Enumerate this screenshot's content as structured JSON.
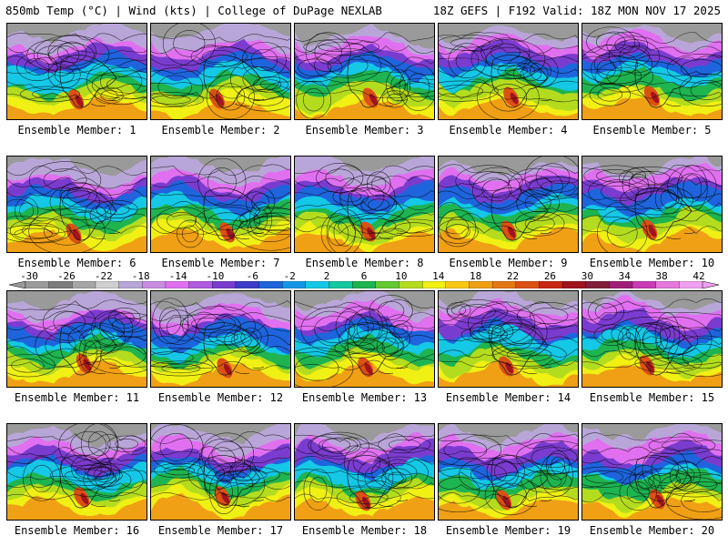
{
  "header": {
    "title": "850mb Temp (°C) | Wind (kts) | College of DuPage NEXLAB",
    "run": "18Z GEFS | F192 Valid: 18Z MON NOV 17 2025"
  },
  "colorbar": {
    "ticks": [
      "-30",
      "-26",
      "-22",
      "-18",
      "-14",
      "-10",
      "-6",
      "-2",
      "2",
      "6",
      "10",
      "14",
      "18",
      "22",
      "26",
      "30",
      "34",
      "38",
      "42"
    ],
    "colors": [
      "#9a9a9a",
      "#7d7d7d",
      "#a6a6a6",
      "#cfcfcf",
      "#b9a6d8",
      "#c88ce0",
      "#e070f0",
      "#b05ae0",
      "#7a3ccf",
      "#3c3cc8",
      "#1e64dc",
      "#1496e6",
      "#14c8e6",
      "#14c8a0",
      "#1eb450",
      "#64c832",
      "#b4dc1e",
      "#f0f014",
      "#fac814",
      "#f0a014",
      "#e67814",
      "#dc5014",
      "#c82814",
      "#a0141e",
      "#821e3c",
      "#a01e78",
      "#c83cb4",
      "#e678dc",
      "#f0a0f0"
    ]
  },
  "panels": [
    {
      "label": "Ensemble Member: 1"
    },
    {
      "label": "Ensemble Member: 2"
    },
    {
      "label": "Ensemble Member: 3"
    },
    {
      "label": "Ensemble Member: 4"
    },
    {
      "label": "Ensemble Member: 5"
    },
    {
      "label": "Ensemble Member: 6"
    },
    {
      "label": "Ensemble Member: 7"
    },
    {
      "label": "Ensemble Member: 8"
    },
    {
      "label": "Ensemble Member: 9"
    },
    {
      "label": "Ensemble Member: 10"
    },
    {
      "label": "Ensemble Member: 11"
    },
    {
      "label": "Ensemble Member: 12"
    },
    {
      "label": "Ensemble Member: 13"
    },
    {
      "label": "Ensemble Member: 14"
    },
    {
      "label": "Ensemble Member: 15"
    },
    {
      "label": "Ensemble Member: 16"
    },
    {
      "label": "Ensemble Member: 17"
    },
    {
      "label": "Ensemble Member: 18"
    },
    {
      "label": "Ensemble Member: 19"
    },
    {
      "label": "Ensemble Member: 20"
    }
  ]
}
